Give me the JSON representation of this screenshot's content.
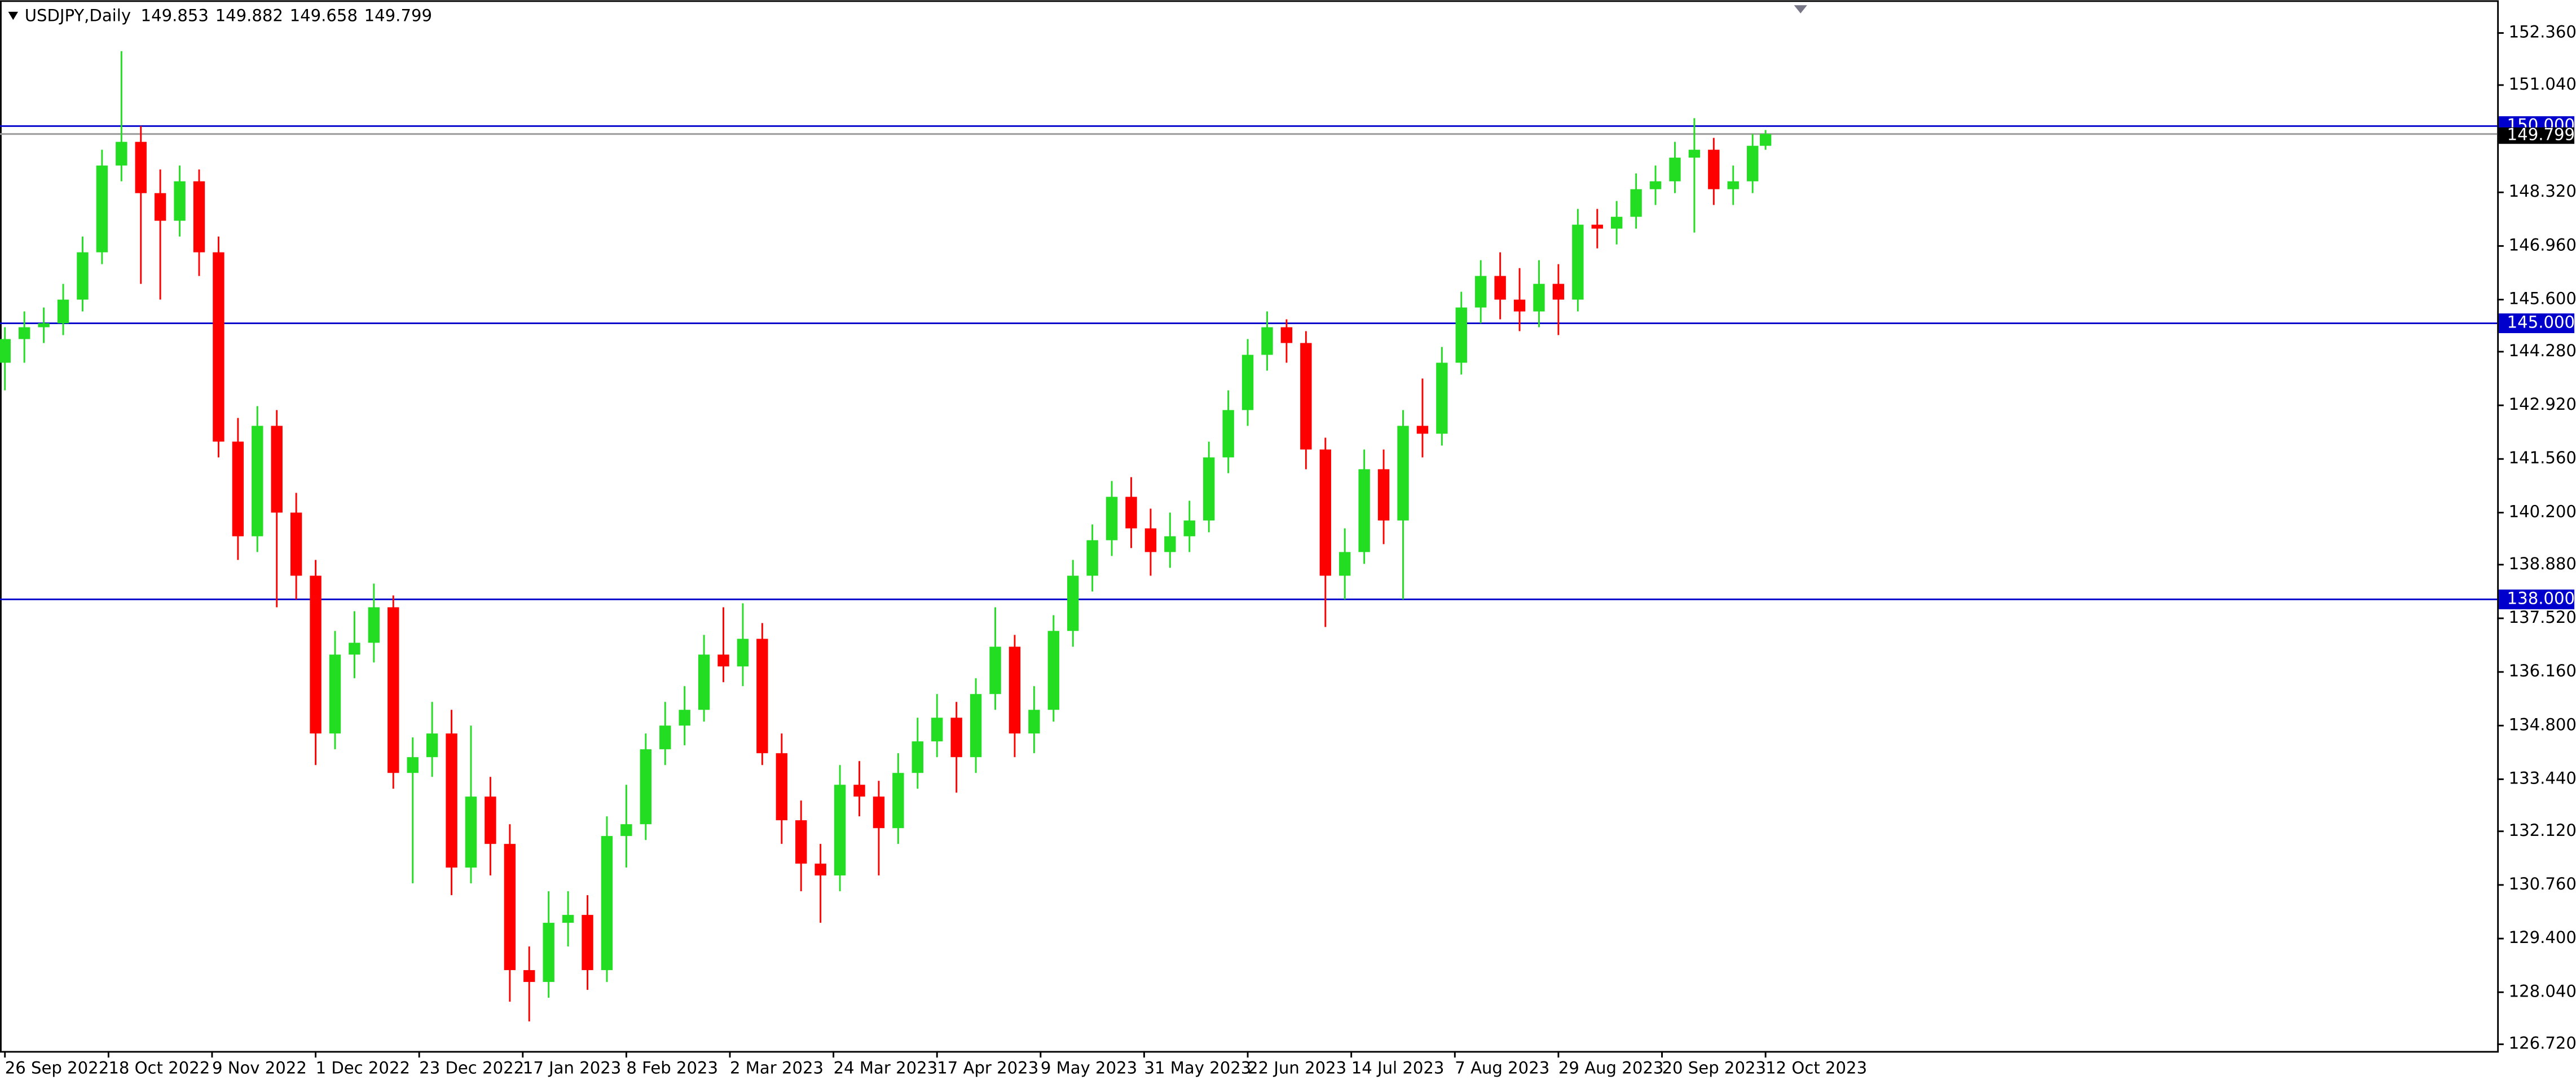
{
  "header": {
    "symbol": "USDJPY,Daily",
    "ohlc": [
      "149.853",
      "149.882",
      "149.658",
      "149.799"
    ]
  },
  "chart_data": {
    "type": "candlestick",
    "x": [
      0,
      3,
      6,
      9,
      12,
      15,
      18,
      21,
      24,
      27,
      30,
      33,
      36,
      39,
      42,
      45,
      48,
      51,
      54,
      57,
      60,
      63,
      66,
      69,
      72,
      75,
      78,
      81,
      84,
      87,
      90,
      93,
      96,
      99,
      102,
      105,
      108,
      111,
      114,
      117,
      120,
      123,
      126,
      129,
      132,
      135,
      138,
      141,
      144,
      147,
      150,
      153,
      156,
      159,
      162,
      165,
      168,
      171,
      174,
      177,
      180,
      183,
      186,
      189,
      192,
      195,
      198,
      201,
      204,
      207,
      210,
      213,
      216,
      219,
      222,
      225,
      228,
      231,
      234,
      237,
      240,
      243,
      246,
      249,
      252,
      255,
      258,
      261,
      264,
      267,
      270,
      272
    ],
    "open": [
      144.0,
      144.6,
      144.9,
      145.0,
      145.6,
      146.8,
      149.0,
      149.6,
      148.3,
      147.6,
      148.6,
      146.8,
      142.0,
      139.6,
      142.4,
      140.2,
      138.6,
      134.6,
      136.6,
      136.9,
      137.8,
      133.6,
      134.0,
      134.6,
      131.2,
      133.0,
      131.8,
      128.6,
      128.3,
      129.8,
      130.0,
      128.6,
      132.0,
      132.3,
      134.2,
      134.8,
      135.2,
      136.6,
      136.3,
      137.0,
      134.1,
      132.4,
      131.3,
      131.0,
      133.3,
      133.0,
      132.2,
      133.6,
      134.4,
      135.0,
      134.0,
      135.6,
      136.8,
      134.6,
      135.2,
      137.2,
      138.6,
      139.5,
      140.6,
      139.8,
      139.2,
      139.6,
      140.0,
      141.6,
      142.8,
      144.2,
      144.9,
      144.5,
      141.8,
      138.6,
      139.2,
      141.3,
      140.0,
      142.4,
      142.2,
      144.0,
      145.4,
      146.2,
      145.6,
      145.3,
      146.0,
      145.6,
      147.5,
      147.4,
      147.7,
      148.4,
      148.6,
      149.2,
      149.4,
      148.4,
      148.6,
      149.5
    ],
    "high": [
      144.9,
      145.3,
      145.4,
      146.0,
      147.2,
      149.4,
      151.9,
      150.0,
      148.9,
      149.0,
      148.9,
      147.2,
      142.6,
      142.9,
      142.8,
      140.7,
      139.0,
      137.2,
      137.7,
      138.4,
      138.1,
      134.5,
      135.4,
      135.2,
      134.8,
      133.5,
      132.3,
      129.2,
      130.6,
      130.6,
      130.5,
      132.5,
      133.3,
      134.6,
      135.4,
      135.8,
      137.1,
      137.8,
      137.9,
      137.4,
      134.6,
      132.9,
      131.8,
      133.8,
      133.9,
      133.4,
      134.1,
      135.0,
      135.6,
      135.4,
      136.0,
      137.8,
      137.1,
      135.8,
      137.6,
      139.0,
      139.9,
      141.0,
      141.1,
      140.3,
      140.2,
      140.5,
      142.0,
      143.3,
      144.6,
      145.3,
      145.1,
      144.8,
      142.1,
      139.8,
      141.8,
      141.8,
      142.8,
      143.6,
      144.4,
      145.8,
      146.6,
      146.8,
      146.4,
      146.6,
      146.5,
      147.9,
      147.9,
      148.1,
      148.8,
      149.0,
      149.6,
      150.2,
      149.7,
      149.0,
      149.8,
      149.9
    ],
    "low": [
      143.3,
      144.0,
      144.5,
      144.7,
      145.3,
      146.5,
      148.6,
      146.0,
      145.6,
      147.2,
      146.2,
      141.6,
      139.0,
      139.2,
      137.8,
      138.0,
      133.8,
      134.2,
      136.0,
      136.4,
      133.2,
      130.8,
      133.5,
      130.5,
      130.8,
      131.0,
      127.8,
      127.3,
      127.9,
      129.2,
      128.1,
      128.3,
      131.2,
      131.9,
      133.8,
      134.3,
      134.9,
      135.9,
      135.8,
      133.8,
      131.8,
      130.6,
      129.8,
      130.6,
      132.5,
      131.0,
      131.8,
      133.2,
      134.0,
      133.1,
      133.6,
      135.2,
      134.0,
      134.1,
      134.9,
      136.8,
      138.2,
      139.1,
      139.3,
      138.6,
      138.8,
      139.2,
      139.7,
      141.2,
      142.4,
      143.8,
      144.0,
      141.3,
      137.3,
      138.0,
      138.9,
      139.4,
      138.0,
      141.6,
      141.9,
      143.7,
      145.0,
      145.1,
      144.8,
      144.9,
      144.7,
      145.3,
      146.9,
      147.0,
      147.4,
      148.0,
      148.3,
      147.3,
      148.0,
      148.0,
      148.3,
      149.4
    ],
    "close": [
      144.6,
      144.9,
      145.0,
      145.6,
      146.8,
      149.0,
      149.6,
      148.3,
      147.6,
      148.6,
      146.8,
      142.0,
      139.6,
      142.4,
      140.2,
      138.6,
      134.6,
      136.6,
      136.9,
      137.8,
      133.6,
      134.0,
      134.6,
      131.2,
      133.0,
      131.8,
      128.6,
      128.3,
      129.8,
      130.0,
      128.6,
      132.0,
      132.3,
      134.2,
      134.8,
      135.2,
      136.6,
      136.3,
      137.0,
      134.1,
      132.4,
      131.3,
      131.0,
      133.3,
      133.0,
      132.2,
      133.6,
      134.4,
      135.0,
      134.0,
      135.6,
      136.8,
      134.6,
      135.2,
      137.2,
      138.6,
      139.5,
      140.6,
      139.8,
      139.2,
      139.6,
      140.0,
      141.6,
      142.8,
      144.2,
      144.9,
      144.5,
      141.8,
      138.6,
      139.2,
      141.3,
      140.0,
      142.4,
      142.2,
      144.0,
      145.4,
      146.2,
      145.6,
      145.3,
      146.0,
      145.6,
      147.5,
      147.4,
      147.7,
      148.4,
      148.6,
      149.2,
      149.4,
      148.4,
      148.6,
      149.5,
      149.8
    ],
    "up_color": "#22dd22",
    "down_color": "#ff0000",
    "ylim": [
      126.55,
      153.19
    ],
    "yticks": [
      {
        "value": 152.36,
        "label": "152.360"
      },
      {
        "value": 151.04,
        "label": "151.040"
      },
      {
        "value": 148.32,
        "label": "148.320"
      },
      {
        "value": 146.96,
        "label": "146.960"
      },
      {
        "value": 145.6,
        "label": "145.600"
      },
      {
        "value": 144.28,
        "label": "144.280"
      },
      {
        "value": 142.92,
        "label": "142.920"
      },
      {
        "value": 141.56,
        "label": "141.560"
      },
      {
        "value": 140.2,
        "label": "140.200"
      },
      {
        "value": 138.88,
        "label": "138.880"
      },
      {
        "value": 137.52,
        "label": "137.520"
      },
      {
        "value": 136.16,
        "label": "136.160"
      },
      {
        "value": 134.8,
        "label": "134.800"
      },
      {
        "value": 133.44,
        "label": "133.440"
      },
      {
        "value": 132.12,
        "label": "132.120"
      },
      {
        "value": 130.76,
        "label": "130.760"
      },
      {
        "value": 129.4,
        "label": "129.400"
      },
      {
        "value": 128.04,
        "label": "128.040"
      },
      {
        "value": 126.72,
        "label": "126.720"
      }
    ],
    "xticks": [
      {
        "value": 0,
        "label": "26 Sep 2022"
      },
      {
        "value": 16,
        "label": "18 Oct 2022"
      },
      {
        "value": 32,
        "label": "9 Nov 2022"
      },
      {
        "value": 48,
        "label": "1 Dec 2022"
      },
      {
        "value": 64,
        "label": "23 Dec 2022"
      },
      {
        "value": 80,
        "label": "17 Jan 2023"
      },
      {
        "value": 96,
        "label": "8 Feb 2023"
      },
      {
        "value": 112,
        "label": "2 Mar 2023"
      },
      {
        "value": 128,
        "label": "24 Mar 2023"
      },
      {
        "value": 144,
        "label": "17 Apr 2023"
      },
      {
        "value": 160,
        "label": "9 May 2023"
      },
      {
        "value": 176,
        "label": "31 May 2023"
      },
      {
        "value": 192,
        "label": "22 Jun 2023"
      },
      {
        "value": 208,
        "label": "14 Jul 2023"
      },
      {
        "value": 224,
        "label": "7 Aug 2023"
      },
      {
        "value": 240,
        "label": "29 Aug 2023"
      },
      {
        "value": 256,
        "label": "20 Sep 2023"
      },
      {
        "value": 272,
        "label": "12 Oct 2023"
      }
    ],
    "levels": [
      {
        "value": 150,
        "label": "150.000"
      },
      {
        "value": 145,
        "label": "145.000"
      },
      {
        "value": 138,
        "label": "138.000"
      }
    ],
    "level_color": "#0000cc",
    "last_price": {
      "value": 149.799,
      "label": "149.799"
    },
    "last_color": "#999999"
  }
}
